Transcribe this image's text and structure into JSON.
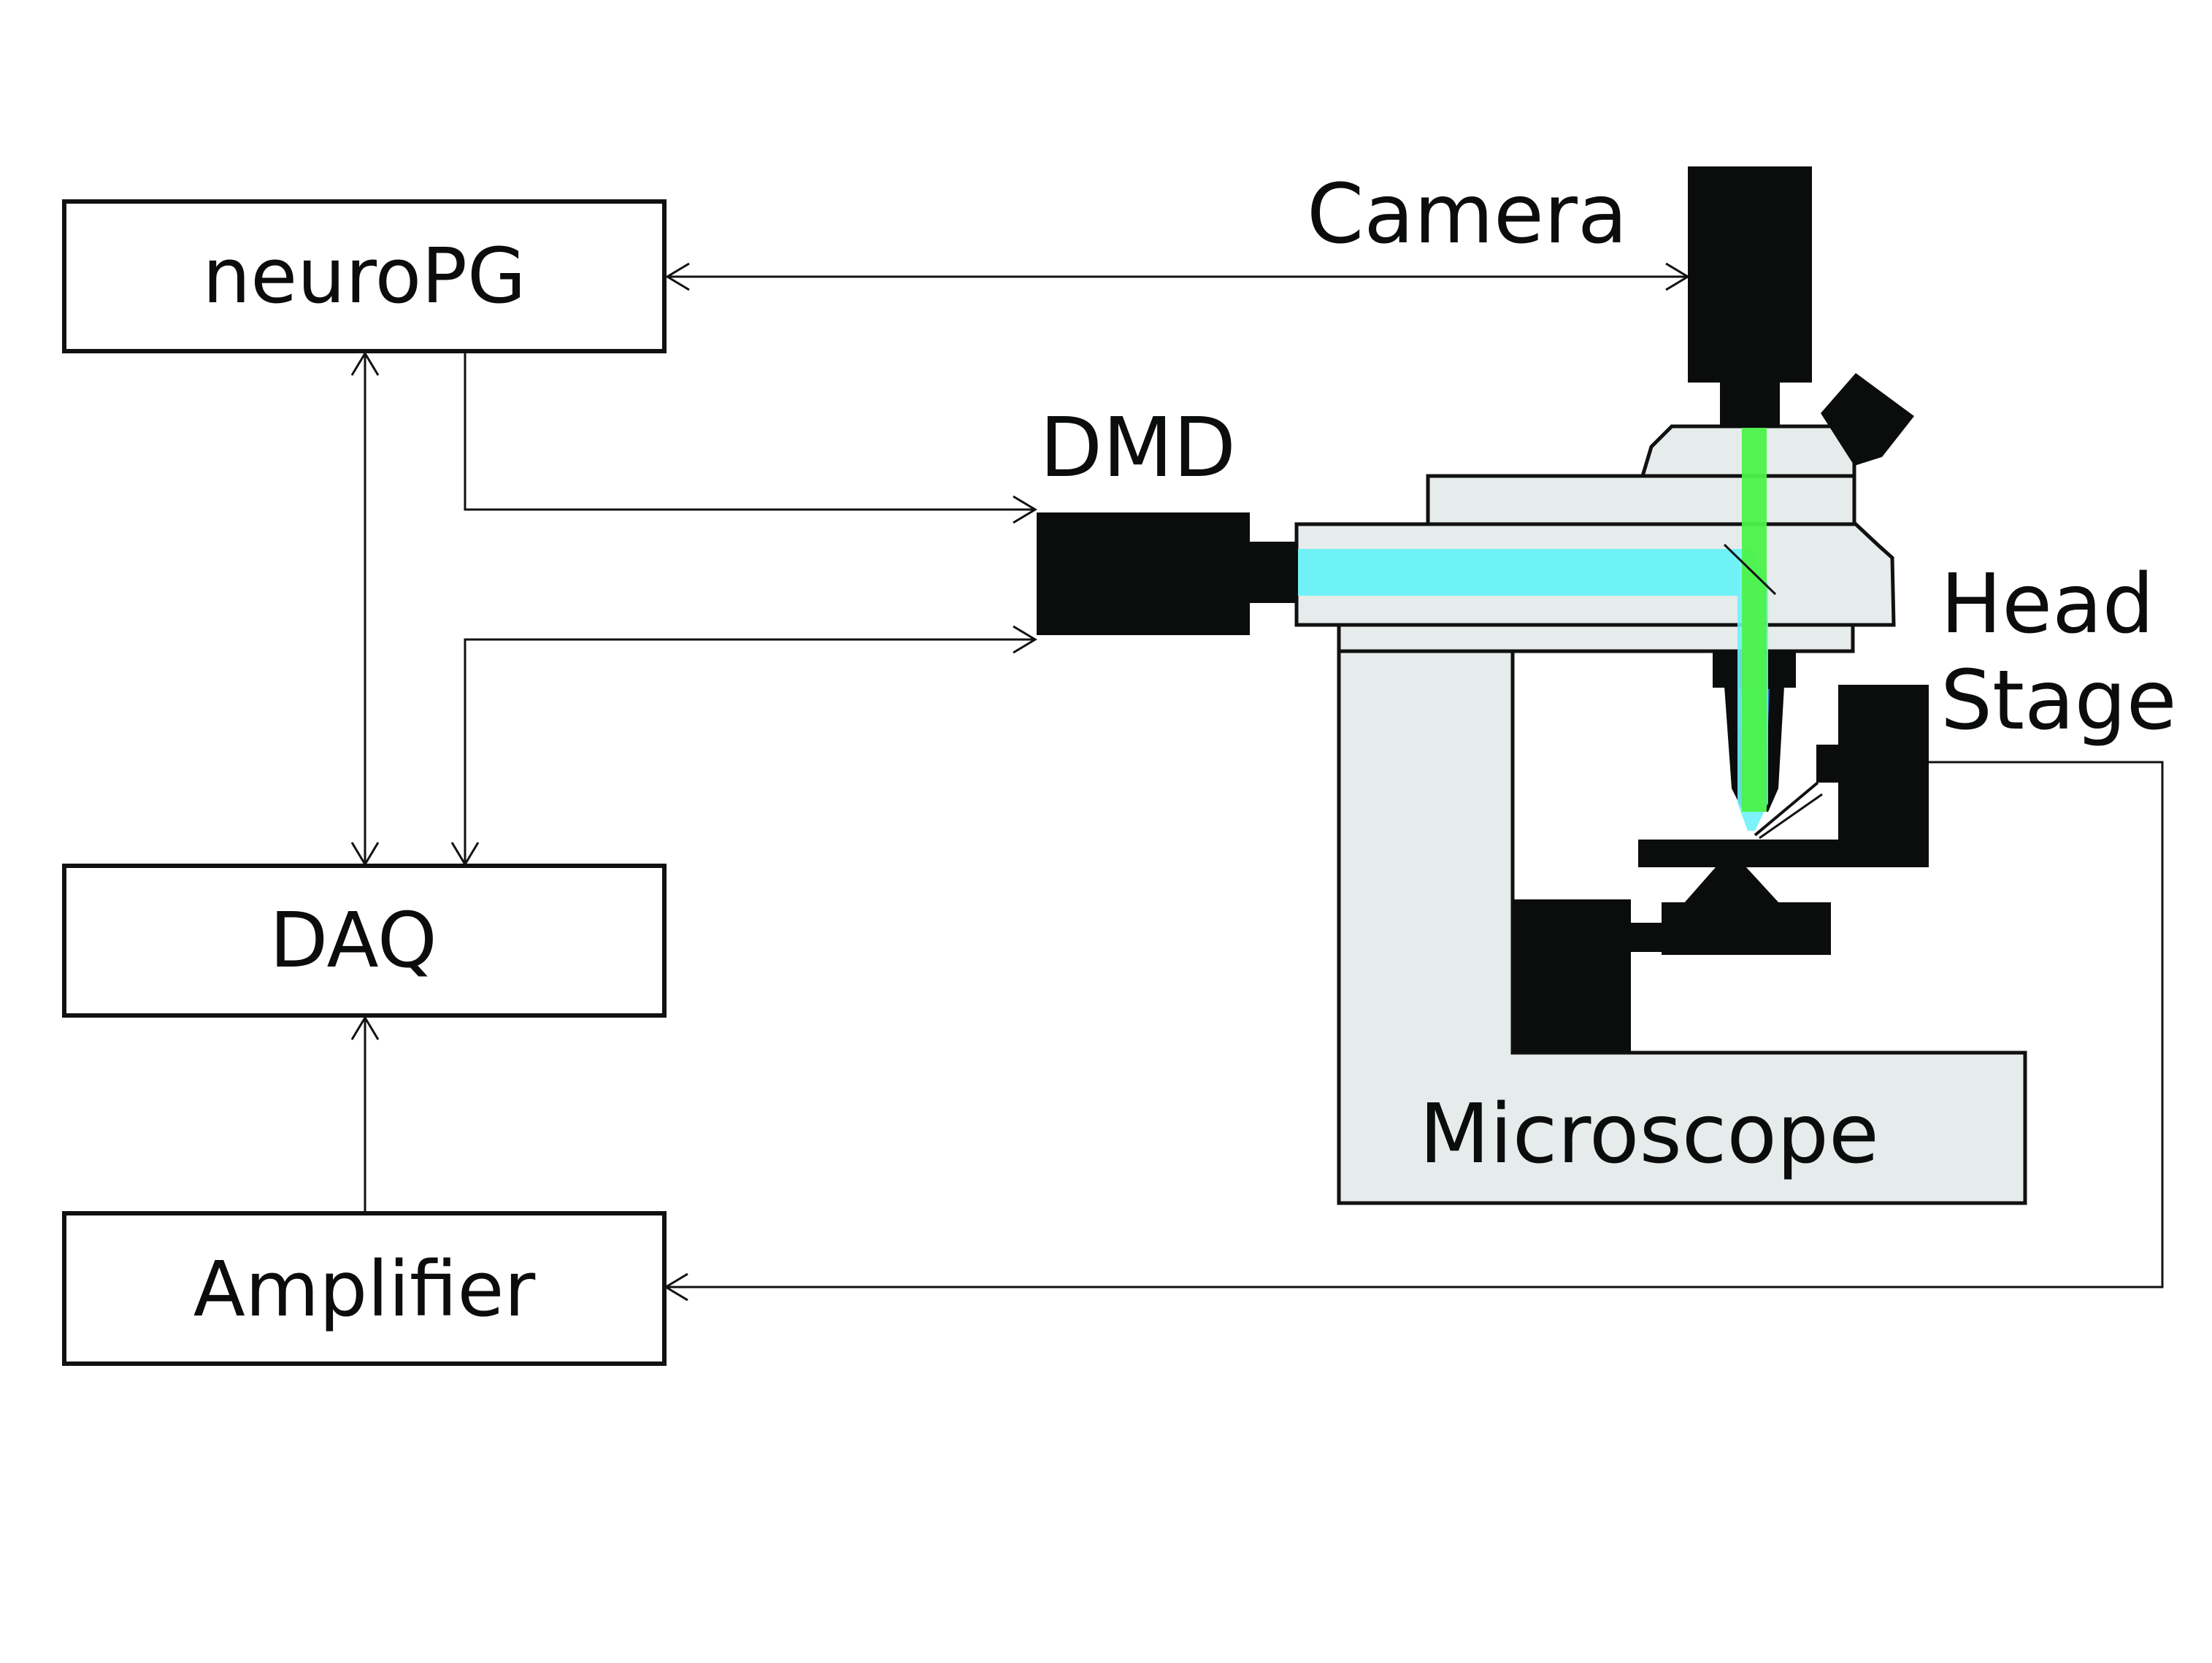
{
  "blocks": {
    "neuropg": "neuroPG",
    "daq": "DAQ",
    "amplifier": "Amplifier"
  },
  "devices": {
    "camera": "Camera",
    "dmd": "DMD",
    "head_stage_line1": "Head",
    "head_stage_line2": "Stage",
    "microscope": "Microscope"
  },
  "colors": {
    "blue_light": "#6ef2f7",
    "green_light": "#4cf24a",
    "microscope_body": "#e6ebeb",
    "equipment": "#0b0d0c"
  }
}
